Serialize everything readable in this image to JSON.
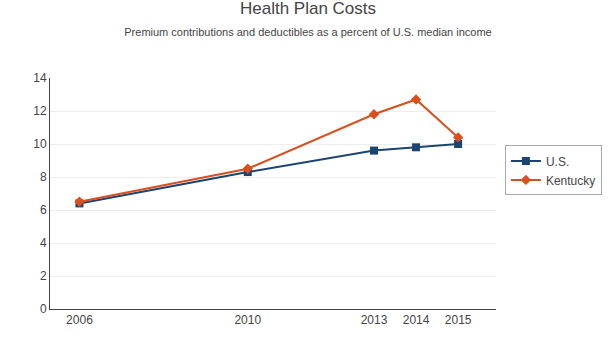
{
  "chart_data": {
    "type": "line",
    "title": "Health Plan Costs",
    "subtitle": "Premium contributions and deductibles as a percent of U.S. median income",
    "x": [
      2006,
      2010,
      2013,
      2014,
      2015
    ],
    "series": [
      {
        "name": "U.S.",
        "color": "#1c4471",
        "marker": "square",
        "values": [
          6.4,
          8.3,
          9.6,
          9.8,
          10.0
        ]
      },
      {
        "name": "Kentucky",
        "color": "#d94f1e",
        "marker": "diamond",
        "values": [
          6.5,
          8.5,
          11.8,
          12.7,
          10.4
        ]
      }
    ],
    "xlim": [
      2005.3,
      2015.9
    ],
    "xticks": [
      2006,
      2010,
      2013,
      2014,
      2015
    ],
    "ylim": [
      0,
      14
    ],
    "yticks": [
      0,
      2,
      4,
      6,
      8,
      10,
      12,
      14
    ],
    "grid": "y",
    "legend": "right"
  }
}
